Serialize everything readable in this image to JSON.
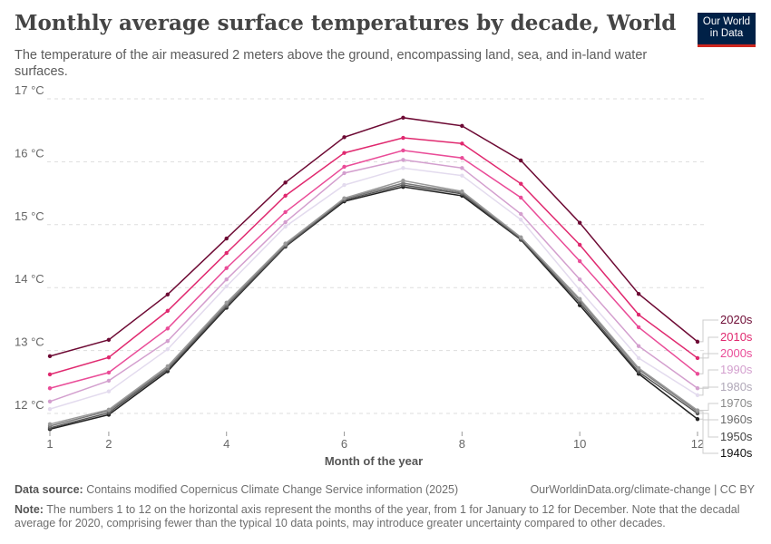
{
  "header": {
    "title": "Monthly average surface temperatures by decade, World",
    "subtitle": "The temperature of the air measured 2 meters above the ground, encompassing land, sea, and in-land water surfaces.",
    "logo_line1": "Our World",
    "logo_line2": "in Data",
    "logo_colors": {
      "background": "#002147",
      "accent": "#ce261e"
    }
  },
  "chart_data": {
    "type": "line",
    "title": "Monthly average surface temperatures by decade, World",
    "xlabel": "Month of the year",
    "ylabel": "",
    "xlim": [
      1,
      12
    ],
    "ylim": [
      11.7,
      17
    ],
    "x": [
      1,
      2,
      3,
      4,
      5,
      6,
      7,
      8,
      9,
      10,
      11,
      12
    ],
    "xticks": [
      1,
      2,
      4,
      6,
      8,
      10,
      12
    ],
    "yticks": [
      12,
      13,
      14,
      15,
      16,
      17
    ],
    "ytick_labels": [
      "12 °C",
      "13 °C",
      "14 °C",
      "15 °C",
      "16 °C",
      "17 °C"
    ],
    "grid": "horizontal dashed",
    "legend": "right (line-end labels)",
    "series": [
      {
        "name": "2020s",
        "color": "#6d0a34",
        "values": [
          12.91,
          13.17,
          13.89,
          14.78,
          15.67,
          16.39,
          16.7,
          16.57,
          16.02,
          15.03,
          13.9,
          13.14
        ]
      },
      {
        "name": "2010s",
        "color": "#e0296f",
        "values": [
          12.62,
          12.89,
          13.63,
          14.55,
          15.46,
          16.14,
          16.38,
          16.29,
          15.65,
          14.68,
          13.57,
          12.88
        ]
      },
      {
        "name": "2000s",
        "color": "#ea4c98",
        "values": [
          12.4,
          12.65,
          13.35,
          14.31,
          15.2,
          15.92,
          16.18,
          16.06,
          15.43,
          14.42,
          13.37,
          12.63
        ]
      },
      {
        "name": "1990s",
        "color": "#d39fce",
        "values": [
          12.19,
          12.52,
          13.15,
          14.13,
          15.04,
          15.82,
          16.03,
          15.9,
          15.17,
          14.13,
          13.07,
          12.4
        ]
      },
      {
        "name": "1980s",
        "color": "#e3dbee",
        "label_color": "#b0a8b8",
        "values": [
          12.07,
          12.35,
          13.02,
          14.02,
          14.97,
          15.63,
          15.9,
          15.78,
          15.08,
          13.96,
          12.88,
          12.29
        ]
      },
      {
        "name": "1970s",
        "color": "#9a9a9a",
        "label_color": "#8a8a8a",
        "values": [
          11.83,
          12.06,
          12.75,
          13.76,
          14.7,
          15.42,
          15.7,
          15.53,
          14.8,
          13.82,
          12.72,
          12.05
        ]
      },
      {
        "name": "1960s",
        "color": "#7a7a7a",
        "label_color": "#6a6a6a",
        "values": [
          11.8,
          12.04,
          12.72,
          13.73,
          14.68,
          15.41,
          15.66,
          15.51,
          14.79,
          13.8,
          12.7,
          12.03
        ]
      },
      {
        "name": "1950s",
        "color": "#555555",
        "label_color": "#444444",
        "values": [
          11.77,
          12.01,
          12.7,
          13.7,
          14.66,
          15.39,
          15.63,
          15.49,
          14.77,
          13.76,
          12.66,
          12.0
        ]
      },
      {
        "name": "1940s",
        "color": "#222222",
        "label_color": "#111111",
        "values": [
          11.75,
          11.98,
          12.67,
          13.68,
          14.65,
          15.37,
          15.6,
          15.46,
          14.76,
          13.72,
          12.63,
          11.91
        ]
      }
    ]
  },
  "footer": {
    "source_label": "Data source:",
    "source_text": "Contains modified Copernicus Climate Change Service information (2025)",
    "url": "OurWorldinData.org/climate-change | CC BY",
    "note_label": "Note:",
    "note_text": "The numbers 1 to 12 on the horizontal axis represent the months of the year, from 1 for January to 12 for December. Note that the decadal average for 2020, comprising fewer than the typical 10 data points, may introduce greater uncertainty compared to other decades."
  }
}
